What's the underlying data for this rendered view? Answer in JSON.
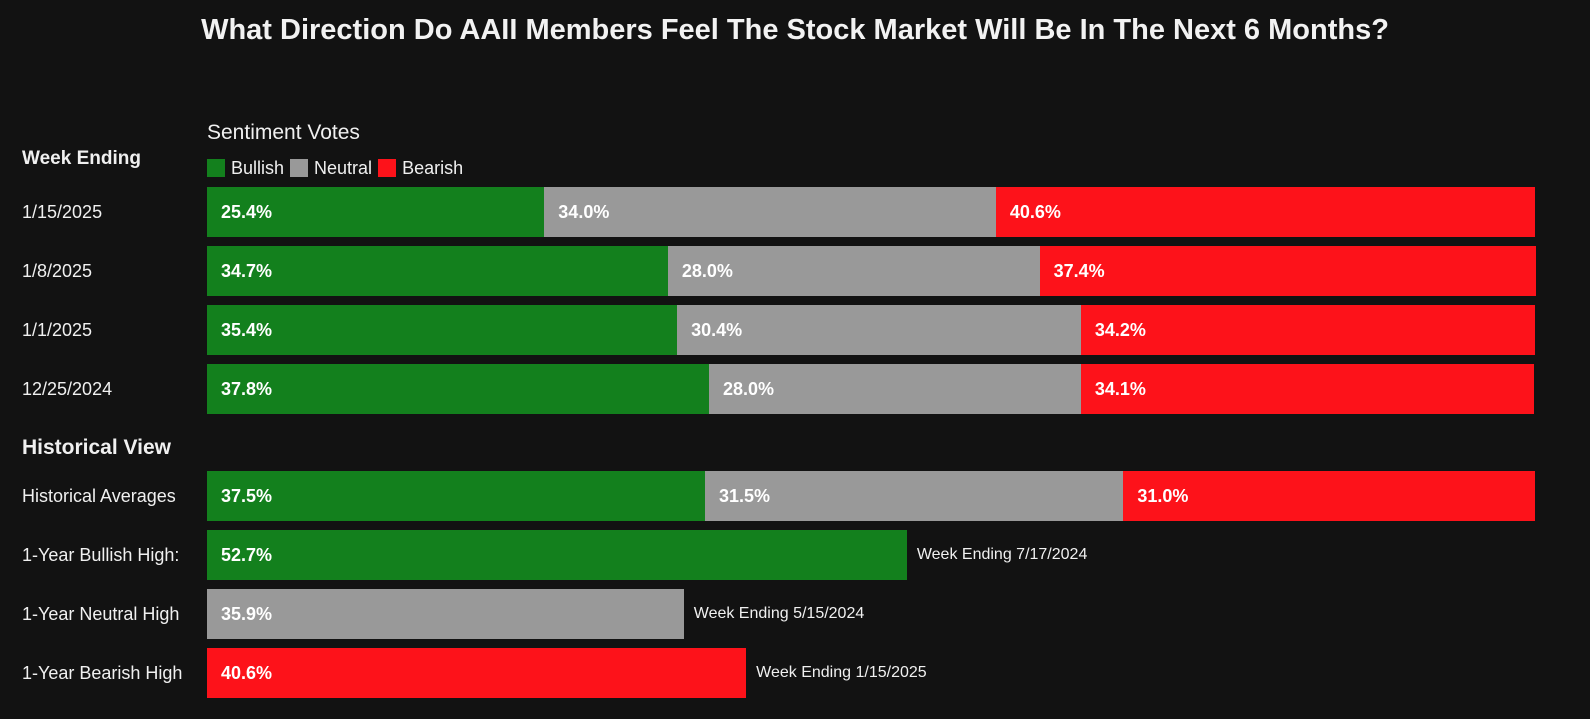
{
  "title": "What Direction Do AAII Members Feel The Stock Market Will Be In The Next 6 Months?",
  "chart_data": {
    "type": "bar",
    "stacked": true,
    "orientation": "horizontal",
    "subtitle": "Sentiment Votes",
    "row_header": "Week Ending",
    "section_header": "Historical View",
    "legend": [
      {
        "name": "Bullish",
        "color": "#13801d"
      },
      {
        "name": "Neutral",
        "color": "#999999"
      },
      {
        "name": "Bearish",
        "color": "#fd121a"
      }
    ],
    "legend_position": "top-left",
    "xlim": [
      0,
      100
    ],
    "weekly": [
      {
        "label": "1/15/2025",
        "values": [
          25.4,
          34.0,
          40.6
        ],
        "texts": [
          "25.4%",
          "34.0%",
          "40.6%"
        ]
      },
      {
        "label": "1/8/2025",
        "values": [
          34.7,
          28.0,
          37.4
        ],
        "texts": [
          "34.7%",
          "28.0%",
          "37.4%"
        ]
      },
      {
        "label": "1/1/2025",
        "values": [
          35.4,
          30.4,
          34.2
        ],
        "texts": [
          "35.4%",
          "30.4%",
          "34.2%"
        ]
      },
      {
        "label": "12/25/2024",
        "values": [
          37.8,
          28.0,
          34.1
        ],
        "texts": [
          "37.8%",
          "28.0%",
          "34.1%"
        ]
      }
    ],
    "historical": [
      {
        "label": "Historical Averages",
        "values": [
          37.5,
          31.5,
          31.0
        ],
        "texts": [
          "37.5%",
          "31.5%",
          "31.0%"
        ],
        "series": [
          0,
          1,
          2
        ],
        "note": ""
      },
      {
        "label": "1-Year Bullish High:",
        "values": [
          52.7
        ],
        "texts": [
          "52.7%"
        ],
        "series": [
          0
        ],
        "note": "Week Ending 7/17/2024"
      },
      {
        "label": "1-Year Neutral High",
        "values": [
          35.9
        ],
        "texts": [
          "35.9%"
        ],
        "series": [
          1
        ],
        "note": "Week Ending 5/15/2024"
      },
      {
        "label": "1-Year Bearish High",
        "values": [
          40.6
        ],
        "texts": [
          "40.6%"
        ],
        "series": [
          2
        ],
        "note": "Week Ending 1/15/2025"
      }
    ]
  }
}
